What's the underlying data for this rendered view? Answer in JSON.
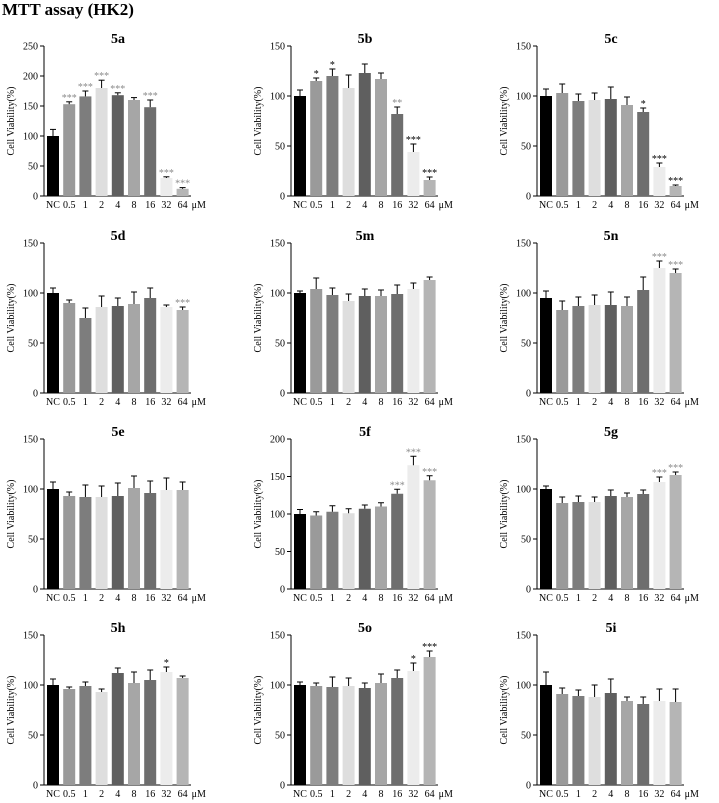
{
  "page_title": "MTT assay (HK2)",
  "colors": {
    "bars": [
      "#000000",
      "#9a9a9a",
      "#7d7d7d",
      "#dedede",
      "#5f5f5f",
      "#a6a6a6",
      "#6e6e6e",
      "#ececec",
      "#b5b5b5"
    ],
    "axis": "#000000",
    "star_gray": "#8c8c8c",
    "star_black": "#000000"
  },
  "chart_data": [
    {
      "type": "bar",
      "title": "5a",
      "ylabel": "Cell Viability(%)",
      "unit": "μM",
      "categories": [
        "NC",
        "0.5",
        "1",
        "2",
        "4",
        "8",
        "16",
        "32",
        "64"
      ],
      "values": [
        100,
        153,
        166,
        180,
        168,
        160,
        148,
        30,
        12
      ],
      "errors": [
        11,
        4,
        9,
        13,
        4,
        4,
        12,
        2,
        2
      ],
      "significance": [
        "",
        "***",
        "***",
        "***",
        "***",
        "",
        "***",
        "***",
        "***"
      ],
      "star_color": "gray",
      "ylim": [
        0,
        250
      ],
      "yticks": [
        "0",
        "50",
        "100",
        "150",
        "200",
        "250"
      ]
    },
    {
      "type": "bar",
      "title": "5b",
      "ylabel": "Cell Viability(%)",
      "unit": "μM",
      "categories": [
        "NC",
        "0.5",
        "1",
        "2",
        "4",
        "8",
        "16",
        "32",
        "64"
      ],
      "values": [
        100,
        115,
        120,
        108,
        123,
        117,
        82,
        44,
        16
      ],
      "errors": [
        6,
        3,
        7,
        13,
        9,
        6,
        7,
        8,
        3
      ],
      "significance": [
        "",
        "*",
        "*",
        "",
        "",
        "",
        "**",
        "***",
        "***"
      ],
      "star_color": "mixed",
      "ylim": [
        0,
        150
      ],
      "yticks": [
        "0",
        "50",
        "100",
        "150"
      ]
    },
    {
      "type": "bar",
      "title": "5c",
      "ylabel": "Cell Viability(%)",
      "unit": "μM",
      "categories": [
        "NC",
        "0.5",
        "1",
        "2",
        "4",
        "8",
        "16",
        "32",
        "64"
      ],
      "values": [
        100,
        103,
        95,
        96,
        97,
        91,
        84,
        29,
        10
      ],
      "errors": [
        7,
        9,
        7,
        7,
        12,
        8,
        4,
        4,
        1
      ],
      "significance": [
        "",
        "",
        "",
        "",
        "",
        "",
        "*",
        "***",
        "***"
      ],
      "star_color": "black",
      "ylim": [
        0,
        150
      ],
      "yticks": [
        "0",
        "50",
        "100",
        "150"
      ]
    },
    {
      "type": "bar",
      "title": "5d",
      "ylabel": "Cell Viability(%)",
      "unit": "μM",
      "categories": [
        "NC",
        "0.5",
        "1",
        "2",
        "4",
        "8",
        "16",
        "32",
        "64"
      ],
      "values": [
        100,
        90,
        75,
        86,
        87,
        89,
        95,
        86,
        83
      ],
      "errors": [
        5,
        3,
        10,
        11,
        8,
        12,
        10,
        2,
        3
      ],
      "significance": [
        "",
        "",
        "",
        "",
        "",
        "",
        "",
        "",
        "***"
      ],
      "star_color": "gray",
      "ylim": [
        0,
        150
      ],
      "yticks": [
        "0",
        "50",
        "100",
        "150"
      ]
    },
    {
      "type": "bar",
      "title": "5m",
      "ylabel": "Cell Viability(%)",
      "unit": "μM",
      "categories": [
        "NC",
        "0.5",
        "1",
        "2",
        "4",
        "8",
        "16",
        "32",
        "64"
      ],
      "values": [
        100,
        104,
        98,
        92,
        97,
        97,
        99,
        104,
        113
      ],
      "errors": [
        2,
        11,
        7,
        7,
        7,
        6,
        9,
        6,
        3
      ],
      "significance": [
        "",
        "",
        "",
        "",
        "",
        "",
        "",
        "",
        ""
      ],
      "star_color": "gray",
      "ylim": [
        0,
        150
      ],
      "yticks": [
        "0",
        "50",
        "100",
        "150"
      ]
    },
    {
      "type": "bar",
      "title": "5n",
      "ylabel": "Cell Viability(%)",
      "unit": "μM",
      "categories": [
        "NC",
        "0.5",
        "1",
        "2",
        "4",
        "8",
        "16",
        "32",
        "64"
      ],
      "values": [
        95,
        83,
        87,
        88,
        88,
        87,
        103,
        125,
        120
      ],
      "errors": [
        7,
        9,
        9,
        10,
        13,
        9,
        13,
        7,
        4
      ],
      "significance": [
        "",
        "",
        "",
        "",
        "",
        "",
        "",
        "***",
        "***"
      ],
      "star_color": "gray",
      "ylim": [
        0,
        150
      ],
      "yticks": [
        "0",
        "50",
        "100",
        "150"
      ]
    },
    {
      "type": "bar",
      "title": "5e",
      "ylabel": "Cell Viability(%)",
      "unit": "μM",
      "categories": [
        "NC",
        "0.5",
        "1",
        "2",
        "4",
        "8",
        "16",
        "32",
        "64"
      ],
      "values": [
        100,
        93,
        92,
        92,
        93,
        101,
        96,
        99,
        99
      ],
      "errors": [
        7,
        4,
        12,
        11,
        13,
        12,
        12,
        12,
        8
      ],
      "significance": [
        "",
        "",
        "",
        "",
        "",
        "",
        "",
        "",
        ""
      ],
      "star_color": "gray",
      "ylim": [
        0,
        150
      ],
      "yticks": [
        "0",
        "50",
        "100",
        "150"
      ]
    },
    {
      "type": "bar",
      "title": "5f",
      "ylabel": "Cell Viability(%)",
      "unit": "μM",
      "categories": [
        "NC",
        "0.5",
        "1",
        "2",
        "4",
        "8",
        "16",
        "32",
        "64"
      ],
      "values": [
        100,
        98,
        103,
        101,
        107,
        110,
        127,
        165,
        145
      ],
      "errors": [
        6,
        5,
        8,
        6,
        5,
        5,
        6,
        12,
        6
      ],
      "significance": [
        "",
        "",
        "",
        "",
        "",
        "",
        "***",
        "***",
        "***"
      ],
      "star_color": "gray",
      "ylim": [
        0,
        200
      ],
      "yticks": [
        "0",
        "50",
        "100",
        "150",
        "200"
      ]
    },
    {
      "type": "bar",
      "title": "5g",
      "ylabel": "Cell Viability(%)",
      "unit": "μM",
      "categories": [
        "NC",
        "0.5",
        "1",
        "2",
        "4",
        "8",
        "16",
        "32",
        "64"
      ],
      "values": [
        100,
        86,
        87,
        87,
        93,
        92,
        95,
        107,
        114
      ],
      "errors": [
        3,
        6,
        6,
        5,
        6,
        4,
        4,
        5,
        3
      ],
      "significance": [
        "",
        "",
        "",
        "",
        "",
        "",
        "",
        "***",
        "***"
      ],
      "star_color": "gray",
      "ylim": [
        0,
        150
      ],
      "yticks": [
        "0",
        "50",
        "100",
        "150"
      ]
    },
    {
      "type": "bar",
      "title": "5h",
      "ylabel": "Cell Viability(%)",
      "unit": "μM",
      "categories": [
        "NC",
        "0.5",
        "1",
        "2",
        "4",
        "8",
        "16",
        "32",
        "64"
      ],
      "values": [
        100,
        96,
        99,
        93,
        112,
        102,
        105,
        113,
        107
      ],
      "errors": [
        6,
        2,
        4,
        3,
        5,
        11,
        10,
        5,
        2
      ],
      "significance": [
        "",
        "",
        "",
        "",
        "",
        "",
        "",
        "*",
        ""
      ],
      "star_color": "black",
      "ylim": [
        0,
        150
      ],
      "yticks": [
        "0",
        "50",
        "100",
        "150"
      ]
    },
    {
      "type": "bar",
      "title": "5o",
      "ylabel": "Cell Viability(%)",
      "unit": "μM",
      "categories": [
        "NC",
        "0.5",
        "1",
        "2",
        "4",
        "8",
        "16",
        "32",
        "64"
      ],
      "values": [
        100,
        99,
        98,
        99,
        97,
        102,
        107,
        114,
        128
      ],
      "errors": [
        3,
        3,
        10,
        8,
        5,
        9,
        8,
        8,
        6
      ],
      "significance": [
        "",
        "",
        "",
        "",
        "",
        "",
        "",
        "*",
        "***"
      ],
      "star_color": "black",
      "ylim": [
        0,
        150
      ],
      "yticks": [
        "0",
        "50",
        "100",
        "150"
      ]
    },
    {
      "type": "bar",
      "title": "5i",
      "ylabel": "Cell Viability(%)",
      "unit": "μM",
      "categories": [
        "NC",
        "0.5",
        "1",
        "2",
        "4",
        "8",
        "16",
        "32",
        "64"
      ],
      "values": [
        100,
        91,
        89,
        88,
        92,
        84,
        81,
        84,
        83
      ],
      "errors": [
        13,
        6,
        6,
        12,
        14,
        4,
        7,
        12,
        13
      ],
      "significance": [
        "",
        "",
        "",
        "",
        "",
        "",
        "",
        "",
        ""
      ],
      "star_color": "gray",
      "ylim": [
        0,
        150
      ],
      "yticks": [
        "0",
        "50",
        "100",
        "150"
      ]
    }
  ]
}
